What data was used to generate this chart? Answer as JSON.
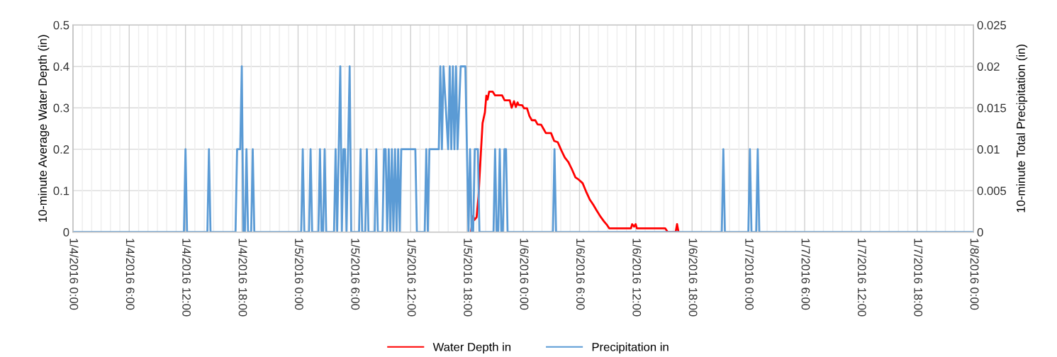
{
  "chart_data": {
    "type": "line",
    "ylabel": "10-minute Average Water Depth (in)",
    "y2label": "10-minute Total Precipitation (in)",
    "ylim": [
      0,
      0.5
    ],
    "yticks": [
      0,
      0.1,
      0.2,
      0.3,
      0.4,
      0.5
    ],
    "y2lim": [
      0,
      0.025
    ],
    "y2ticks": [
      0,
      0.005,
      0.01,
      0.015,
      0.02,
      0.025
    ],
    "xlim": [
      "2016-01-04T00:00",
      "2016-01-08T00:00"
    ],
    "xticks": [
      {
        "value": "2016-01-04T00:00",
        "label": "1/4/2016 0:00"
      },
      {
        "value": "2016-01-04T01:00",
        "label": null
      },
      {
        "value": "2016-01-04T02:00",
        "label": null
      },
      {
        "value": "2016-01-04T03:00",
        "label": null
      },
      {
        "value": "2016-01-04T04:00",
        "label": null
      },
      {
        "value": "2016-01-04T05:00",
        "label": null
      },
      {
        "value": "2016-01-04T06:00",
        "label": "1/4/2016 6:00"
      },
      {
        "value": "2016-01-04T07:00",
        "label": null
      },
      {
        "value": "2016-01-04T08:00",
        "label": null
      },
      {
        "value": "2016-01-04T09:00",
        "label": null
      },
      {
        "value": "2016-01-04T10:00",
        "label": null
      },
      {
        "value": "2016-01-04T11:00",
        "label": null
      },
      {
        "value": "2016-01-04T12:00",
        "label": "1/4/2016 12:00"
      },
      {
        "value": "2016-01-04T13:00",
        "label": null
      },
      {
        "value": "2016-01-04T14:00",
        "label": null
      },
      {
        "value": "2016-01-04T15:00",
        "label": null
      },
      {
        "value": "2016-01-04T16:00",
        "label": null
      },
      {
        "value": "2016-01-04T17:00",
        "label": null
      },
      {
        "value": "2016-01-04T18:00",
        "label": "1/4/2016 18:00"
      },
      {
        "value": "2016-01-04T19:00",
        "label": null
      },
      {
        "value": "2016-01-04T20:00",
        "label": null
      },
      {
        "value": "2016-01-04T21:00",
        "label": null
      },
      {
        "value": "2016-01-04T22:00",
        "label": null
      },
      {
        "value": "2016-01-04T23:00",
        "label": null
      },
      {
        "value": "2016-01-05T00:00",
        "label": "1/5/2016 0:00"
      },
      {
        "value": "2016-01-05T01:00",
        "label": null
      },
      {
        "value": "2016-01-05T02:00",
        "label": null
      },
      {
        "value": "2016-01-05T03:00",
        "label": null
      },
      {
        "value": "2016-01-05T04:00",
        "label": null
      },
      {
        "value": "2016-01-05T05:00",
        "label": null
      },
      {
        "value": "2016-01-05T06:00",
        "label": "1/5/2016 6:00"
      },
      {
        "value": "2016-01-05T07:00",
        "label": null
      },
      {
        "value": "2016-01-05T08:00",
        "label": null
      },
      {
        "value": "2016-01-05T09:00",
        "label": null
      },
      {
        "value": "2016-01-05T10:00",
        "label": null
      },
      {
        "value": "2016-01-05T11:00",
        "label": null
      },
      {
        "value": "2016-01-05T12:00",
        "label": "1/5/2016 12:00"
      },
      {
        "value": "2016-01-05T13:00",
        "label": null
      },
      {
        "value": "2016-01-05T14:00",
        "label": null
      },
      {
        "value": "2016-01-05T15:00",
        "label": null
      },
      {
        "value": "2016-01-05T16:00",
        "label": null
      },
      {
        "value": "2016-01-05T17:00",
        "label": null
      },
      {
        "value": "2016-01-05T18:00",
        "label": "1/5/2016 18:00"
      },
      {
        "value": "2016-01-05T19:00",
        "label": null
      },
      {
        "value": "2016-01-05T20:00",
        "label": null
      },
      {
        "value": "2016-01-05T21:00",
        "label": null
      },
      {
        "value": "2016-01-05T22:00",
        "label": null
      },
      {
        "value": "2016-01-05T23:00",
        "label": null
      },
      {
        "value": "2016-01-06T00:00",
        "label": "1/6/2016 0:00"
      },
      {
        "value": "2016-01-06T01:00",
        "label": null
      },
      {
        "value": "2016-01-06T02:00",
        "label": null
      },
      {
        "value": "2016-01-06T03:00",
        "label": null
      },
      {
        "value": "2016-01-06T04:00",
        "label": null
      },
      {
        "value": "2016-01-06T05:00",
        "label": null
      },
      {
        "value": "2016-01-06T06:00",
        "label": "1/6/2016 6:00"
      },
      {
        "value": "2016-01-06T07:00",
        "label": null
      },
      {
        "value": "2016-01-06T08:00",
        "label": null
      },
      {
        "value": "2016-01-06T09:00",
        "label": null
      },
      {
        "value": "2016-01-06T10:00",
        "label": null
      },
      {
        "value": "2016-01-06T11:00",
        "label": null
      },
      {
        "value": "2016-01-06T12:00",
        "label": "1/6/2016 12:00"
      },
      {
        "value": "2016-01-06T13:00",
        "label": null
      },
      {
        "value": "2016-01-06T14:00",
        "label": null
      },
      {
        "value": "2016-01-06T15:00",
        "label": null
      },
      {
        "value": "2016-01-06T16:00",
        "label": null
      },
      {
        "value": "2016-01-06T17:00",
        "label": null
      },
      {
        "value": "2016-01-06T18:00",
        "label": "1/6/2016 18:00"
      },
      {
        "value": "2016-01-06T19:00",
        "label": null
      },
      {
        "value": "2016-01-06T20:00",
        "label": null
      },
      {
        "value": "2016-01-06T21:00",
        "label": null
      },
      {
        "value": "2016-01-06T22:00",
        "label": null
      },
      {
        "value": "2016-01-06T23:00",
        "label": null
      },
      {
        "value": "2016-01-07T00:00",
        "label": "1/7/2016 0:00"
      },
      {
        "value": "2016-01-07T01:00",
        "label": null
      },
      {
        "value": "2016-01-07T02:00",
        "label": null
      },
      {
        "value": "2016-01-07T03:00",
        "label": null
      },
      {
        "value": "2016-01-07T04:00",
        "label": null
      },
      {
        "value": "2016-01-07T05:00",
        "label": null
      },
      {
        "value": "2016-01-07T06:00",
        "label": "1/7/2016 6:00"
      },
      {
        "value": "2016-01-07T07:00",
        "label": null
      },
      {
        "value": "2016-01-07T08:00",
        "label": null
      },
      {
        "value": "2016-01-07T09:00",
        "label": null
      },
      {
        "value": "2016-01-07T10:00",
        "label": null
      },
      {
        "value": "2016-01-07T11:00",
        "label": null
      },
      {
        "value": "2016-01-07T12:00",
        "label": "1/7/2016 12:00"
      },
      {
        "value": "2016-01-07T13:00",
        "label": null
      },
      {
        "value": "2016-01-07T14:00",
        "label": null
      },
      {
        "value": "2016-01-07T15:00",
        "label": null
      },
      {
        "value": "2016-01-07T16:00",
        "label": null
      },
      {
        "value": "2016-01-07T17:00",
        "label": null
      },
      {
        "value": "2016-01-07T18:00",
        "label": "1/7/2016 18:00"
      },
      {
        "value": "2016-01-07T19:00",
        "label": null
      },
      {
        "value": "2016-01-07T20:00",
        "label": null
      },
      {
        "value": "2016-01-07T21:00",
        "label": null
      },
      {
        "value": "2016-01-07T22:00",
        "label": null
      },
      {
        "value": "2016-01-07T23:00",
        "label": null
      },
      {
        "value": "2016-01-08T00:00",
        "label": "1/8/2016 0:00"
      }
    ],
    "grid": true,
    "legend": "bottom",
    "marker": "none",
    "line_style": "solid",
    "series": [
      {
        "name": "Water Depth in",
        "color": "#ff0000",
        "x": [
          "2016-01-05T18:26",
          "2016-01-05T18:40",
          "2016-01-05T18:47",
          "2016-01-05T19:02",
          "2016-01-05T19:14",
          "2016-01-05T19:29",
          "2016-01-05T19:40",
          "2016-01-05T19:55",
          "2016-01-05T20:04",
          "2016-01-05T20:12",
          "2016-01-05T20:22",
          "2016-01-05T20:45",
          "2016-01-05T21:00",
          "2016-01-05T21:45",
          "2016-01-05T22:01",
          "2016-01-05T22:34",
          "2016-01-05T22:46",
          "2016-01-05T23:01",
          "2016-01-05T23:13",
          "2016-01-05T23:24",
          "2016-01-05T23:31",
          "2016-01-05T23:54",
          "2016-01-06T00:05",
          "2016-01-06T00:24",
          "2016-01-06T00:40",
          "2016-01-06T00:55",
          "2016-01-06T01:17",
          "2016-01-06T01:32",
          "2016-01-06T01:55",
          "2016-01-06T02:10",
          "2016-01-06T02:25",
          "2016-01-06T02:58",
          "2016-01-06T03:18",
          "2016-01-06T03:41",
          "2016-01-06T04:04",
          "2016-01-06T04:26",
          "2016-01-06T04:49",
          "2016-01-06T05:11",
          "2016-01-06T05:34",
          "2016-01-06T05:57",
          "2016-01-06T06:20",
          "2016-01-06T06:42",
          "2016-01-06T07:05",
          "2016-01-06T07:28",
          "2016-01-06T07:50",
          "2016-01-06T08:13",
          "2016-01-06T08:36",
          "2016-01-06T08:54",
          "2016-01-06T09:10",
          "2016-01-06T11:29",
          "2016-01-06T11:37",
          "2016-01-06T11:49",
          "2016-01-06T11:59",
          "2016-01-06T12:07",
          "2016-01-06T15:08",
          "2016-01-06T15:24",
          "2016-01-06T16:15",
          "2016-01-06T16:24",
          "2016-01-06T16:33"
        ],
        "values": [
          0,
          0.039,
          0.029,
          0.036,
          0.086,
          0.19,
          0.263,
          0.289,
          0.329,
          0.32,
          0.339,
          0.339,
          0.33,
          0.33,
          0.318,
          0.318,
          0.3,
          0.316,
          0.302,
          0.313,
          0.307,
          0.306,
          0.299,
          0.299,
          0.28,
          0.27,
          0.27,
          0.26,
          0.259,
          0.249,
          0.239,
          0.239,
          0.22,
          0.217,
          0.197,
          0.18,
          0.169,
          0.152,
          0.132,
          0.126,
          0.118,
          0.098,
          0.079,
          0.066,
          0.052,
          0.038,
          0.026,
          0.018,
          0.009,
          0.009,
          0.019,
          0.013,
          0.019,
          0.009,
          0.009,
          0,
          0,
          0.019,
          0
        ]
      },
      {
        "name": "Precipitation in",
        "color": "#5b9bd5",
        "axis": "y2",
        "x": [
          "2016-01-04T00:00",
          "2016-01-04T11:50",
          "2016-01-04T12:00",
          "2016-01-04T12:10",
          "2016-01-04T14:20",
          "2016-01-04T14:30",
          "2016-01-04T14:40",
          "2016-01-04T17:20",
          "2016-01-04T17:30",
          "2016-01-04T17:50",
          "2016-01-04T18:00",
          "2016-01-04T18:10",
          "2016-01-04T18:20",
          "2016-01-04T18:30",
          "2016-01-04T18:40",
          "2016-01-04T19:00",
          "2016-01-04T19:10",
          "2016-01-04T19:20",
          "2016-01-05T00:20",
          "2016-01-05T00:30",
          "2016-01-05T00:40",
          "2016-01-05T01:10",
          "2016-01-05T01:20",
          "2016-01-05T01:30",
          "2016-01-05T02:10",
          "2016-01-05T02:20",
          "2016-01-05T02:30",
          "2016-01-05T02:40",
          "2016-01-05T02:50",
          "2016-01-05T03:00",
          "2016-01-05T03:50",
          "2016-01-05T04:00",
          "2016-01-05T04:10",
          "2016-01-05T04:30",
          "2016-01-05T04:40",
          "2016-01-05T04:50",
          "2016-01-05T05:00",
          "2016-01-05T05:10",
          "2016-01-05T05:30",
          "2016-01-05T05:40",
          "2016-01-05T06:30",
          "2016-01-05T06:40",
          "2016-01-05T06:50",
          "2016-01-05T07:10",
          "2016-01-05T07:20",
          "2016-01-05T07:30",
          "2016-01-05T08:10",
          "2016-01-05T08:20",
          "2016-01-05T08:30",
          "2016-01-05T09:00",
          "2016-01-05T09:10",
          "2016-01-05T09:20",
          "2016-01-05T09:30",
          "2016-01-05T09:40",
          "2016-01-05T09:50",
          "2016-01-05T10:00",
          "2016-01-05T10:10",
          "2016-01-05T10:20",
          "2016-01-05T10:30",
          "2016-01-05T10:40",
          "2016-01-05T10:50",
          "2016-01-05T11:00",
          "2016-01-05T12:30",
          "2016-01-05T12:40",
          "2016-01-05T13:30",
          "2016-01-05T13:40",
          "2016-01-05T13:50",
          "2016-01-05T14:00",
          "2016-01-05T15:00",
          "2016-01-05T15:10",
          "2016-01-05T15:20",
          "2016-01-05T15:30",
          "2016-01-05T16:00",
          "2016-01-05T16:10",
          "2016-01-05T16:20",
          "2016-01-05T16:30",
          "2016-01-05T16:40",
          "2016-01-05T16:50",
          "2016-01-05T17:00",
          "2016-01-05T17:20",
          "2016-01-05T17:50",
          "2016-01-05T18:10",
          "2016-01-05T18:20",
          "2016-01-05T18:30",
          "2016-01-05T18:40",
          "2016-01-05T18:50",
          "2016-01-05T19:10",
          "2016-01-05T19:20",
          "2016-01-05T20:50",
          "2016-01-05T21:00",
          "2016-01-05T21:10",
          "2016-01-05T21:20",
          "2016-01-05T21:30",
          "2016-01-05T21:40",
          "2016-01-05T21:50",
          "2016-01-05T22:00",
          "2016-01-05T22:10",
          "2016-01-05T22:20",
          "2016-01-06T03:10",
          "2016-01-06T03:20",
          "2016-01-06T03:30",
          "2016-01-06T21:10",
          "2016-01-06T21:20",
          "2016-01-06T21:30",
          "2016-01-07T00:00",
          "2016-01-07T00:10",
          "2016-01-07T00:20",
          "2016-01-07T00:50",
          "2016-01-07T01:00",
          "2016-01-07T01:10",
          "2016-01-08T00:00"
        ],
        "values": [
          0,
          0,
          0.01,
          0,
          0,
          0.01,
          0,
          0,
          0.01,
          0.01,
          0.02,
          0,
          0,
          0.01,
          0,
          0,
          0.01,
          0,
          0,
          0.01,
          0,
          0,
          0.01,
          0,
          0,
          0.01,
          0,
          0,
          0.01,
          0,
          0,
          0.01,
          0,
          0.02,
          0,
          0.01,
          0.01,
          0,
          0.02,
          0,
          0,
          0.01,
          0,
          0,
          0.01,
          0,
          0,
          0.01,
          0,
          0,
          0.01,
          0.01,
          0,
          0.01,
          0,
          0.01,
          0,
          0.01,
          0,
          0.01,
          0,
          0.01,
          0.01,
          0,
          0,
          0.01,
          0,
          0.01,
          0.01,
          0.02,
          0.01,
          0.02,
          0.01,
          0.02,
          0.01,
          0.02,
          0.01,
          0.02,
          0.01,
          0.02,
          0.02,
          0,
          0.01,
          0,
          0,
          0.01,
          0.01,
          0,
          0,
          0.01,
          0,
          0,
          0.01,
          0,
          0,
          0.01,
          0.01,
          0,
          0,
          0.01,
          0,
          0,
          0.01,
          0,
          0,
          0.01,
          0,
          0,
          0.01,
          0,
          0
        ]
      }
    ]
  }
}
